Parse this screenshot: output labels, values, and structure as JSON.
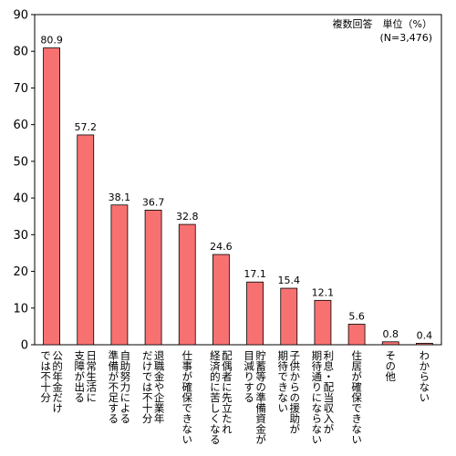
{
  "chart_data": {
    "type": "bar",
    "annotation_line1": "複数回答　単位（%）",
    "annotation_line2": "(N=3,476)",
    "ylim": [
      0,
      90
    ],
    "yticks": [
      0,
      10,
      20,
      30,
      40,
      50,
      60,
      70,
      80,
      90
    ],
    "grid": false,
    "bar_color": "#f87171",
    "categories": [
      [
        "公的年金だけ",
        "では不十分"
      ],
      [
        "日常生活に",
        "支障が出る"
      ],
      [
        "自助努力による",
        "準備が不足する"
      ],
      [
        "退職金や企業年",
        "だけでは不十分"
      ],
      [
        "仕事が確保できない"
      ],
      [
        "配偶者に先立たれ",
        "経済的に苦しくなる"
      ],
      [
        "貯蓄等の準備資金が",
        "目減りする"
      ],
      [
        "子供からの援助が",
        "期待できない"
      ],
      [
        "利息・配当収入が",
        "期待通りにならない"
      ],
      [
        "住居が確保できない"
      ],
      [
        "その他"
      ],
      [
        "わからない"
      ]
    ],
    "values": [
      80.9,
      57.2,
      38.1,
      36.7,
      32.8,
      24.6,
      17.1,
      15.4,
      12.1,
      5.6,
      0.8,
      0.4
    ],
    "value_labels": [
      "80.9",
      "57.2",
      "38.1",
      "36.7",
      "32.8",
      "24.6",
      "17.1",
      "15.4",
      "12.1",
      "5.6",
      "0.8",
      "0.4"
    ]
  }
}
